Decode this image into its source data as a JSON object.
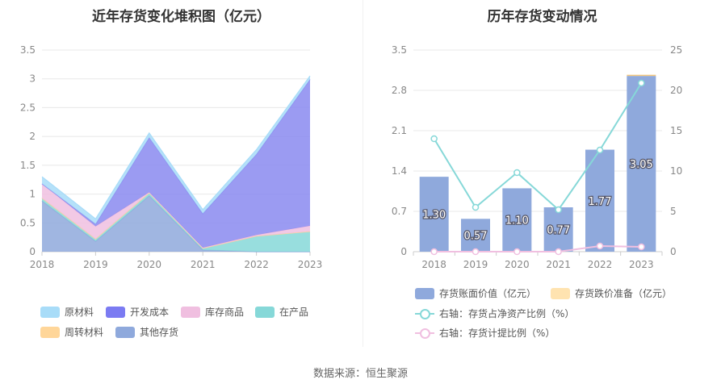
{
  "source": "数据来源：恒生聚源",
  "chart_data": [
    {
      "type": "area",
      "title": "近年存货变化堆积图（亿元）",
      "x": [
        "2018",
        "2019",
        "2020",
        "2021",
        "2022",
        "2023"
      ],
      "ylim": [
        0,
        3.5
      ],
      "yticks": [
        "0",
        "0.5",
        "1",
        "1.5",
        "2",
        "2.5",
        "3",
        "3.5"
      ],
      "stacked": true,
      "series": [
        {
          "name": "其他存货",
          "color": "#8fa9dc",
          "values": [
            0.88,
            0.18,
            0.97,
            0.03,
            0.0,
            0.0
          ]
        },
        {
          "name": "在产品",
          "color": "#86d8d8",
          "values": [
            0.05,
            0.04,
            0.05,
            0.03,
            0.27,
            0.35
          ]
        },
        {
          "name": "周转材料",
          "color": "#ffd699",
          "values": [
            0.0,
            0.0,
            0.0,
            0.0,
            0.0,
            0.0
          ]
        },
        {
          "name": "库存商品",
          "color": "#f0bfe0",
          "values": [
            0.25,
            0.22,
            0.01,
            0.01,
            0.02,
            0.1
          ]
        },
        {
          "name": "开发成本",
          "color": "#8a8af0",
          "values": [
            0.0,
            0.04,
            0.95,
            0.59,
            1.4,
            2.54
          ]
        },
        {
          "name": "原材料",
          "color": "#a8dcf8",
          "values": [
            0.12,
            0.09,
            0.08,
            0.07,
            0.08,
            0.06
          ]
        }
      ],
      "legend": {
        "position": "bottom",
        "items": [
          {
            "name": "原材料",
            "color": "#a8dcf8"
          },
          {
            "name": "开发成本",
            "color": "#7b7bf2"
          },
          {
            "name": "库存商品",
            "color": "#f0bfe0"
          },
          {
            "name": "在产品",
            "color": "#86d8d8"
          },
          {
            "name": "周转材料",
            "color": "#ffd699"
          },
          {
            "name": "其他存货",
            "color": "#8fa9dc"
          }
        ]
      }
    },
    {
      "type": "bar",
      "title": "历年存货变动情况",
      "categories": [
        "2018",
        "2019",
        "2020",
        "2021",
        "2022",
        "2023"
      ],
      "ylim": [
        0,
        3.5
      ],
      "yticks": [
        "0",
        "0.7",
        "1.4",
        "2.1",
        "2.8",
        "3.5"
      ],
      "y2lim": [
        0,
        25
      ],
      "y2ticks": [
        "0",
        "5",
        "10",
        "15",
        "20",
        "25"
      ],
      "series": [
        {
          "name": "存货账面价值（亿元）",
          "kind": "bar",
          "color": "#8fa9dc",
          "values": [
            1.3,
            0.57,
            1.1,
            0.77,
            1.77,
            3.05
          ],
          "labels": [
            "1.30",
            "0.57",
            "1.10",
            "0.77",
            "1.77",
            "3.05"
          ]
        },
        {
          "name": "存货跌价准备（亿元）",
          "kind": "bar",
          "color": "#ffe3b0",
          "values": [
            0,
            0,
            0,
            0,
            0,
            0.02
          ]
        },
        {
          "name": "右轴：存货占净资产比例（%）",
          "kind": "line",
          "axis": "right",
          "color": "#86d8d8",
          "values": [
            14.0,
            5.5,
            9.8,
            5.2,
            12.6,
            20.9
          ]
        },
        {
          "name": "右轴：存货计提比例（%）",
          "kind": "line",
          "axis": "right",
          "color": "#f0bfe0",
          "values": [
            0.0,
            0.0,
            0.0,
            0.0,
            0.7,
            0.6
          ]
        }
      ],
      "legend": {
        "position": "bottom",
        "items": [
          {
            "name": "存货账面价值（亿元）",
            "kind": "bar",
            "color": "#8fa9dc"
          },
          {
            "name": "存货跌价准备（亿元）",
            "kind": "bar",
            "color": "#ffe3b0"
          },
          {
            "name": "右轴：存货占净资产比例（%）",
            "kind": "line",
            "color": "#86d8d8"
          },
          {
            "name": "右轴：存货计提比例（%）",
            "kind": "line",
            "color": "#f0bfe0"
          }
        ]
      }
    }
  ]
}
